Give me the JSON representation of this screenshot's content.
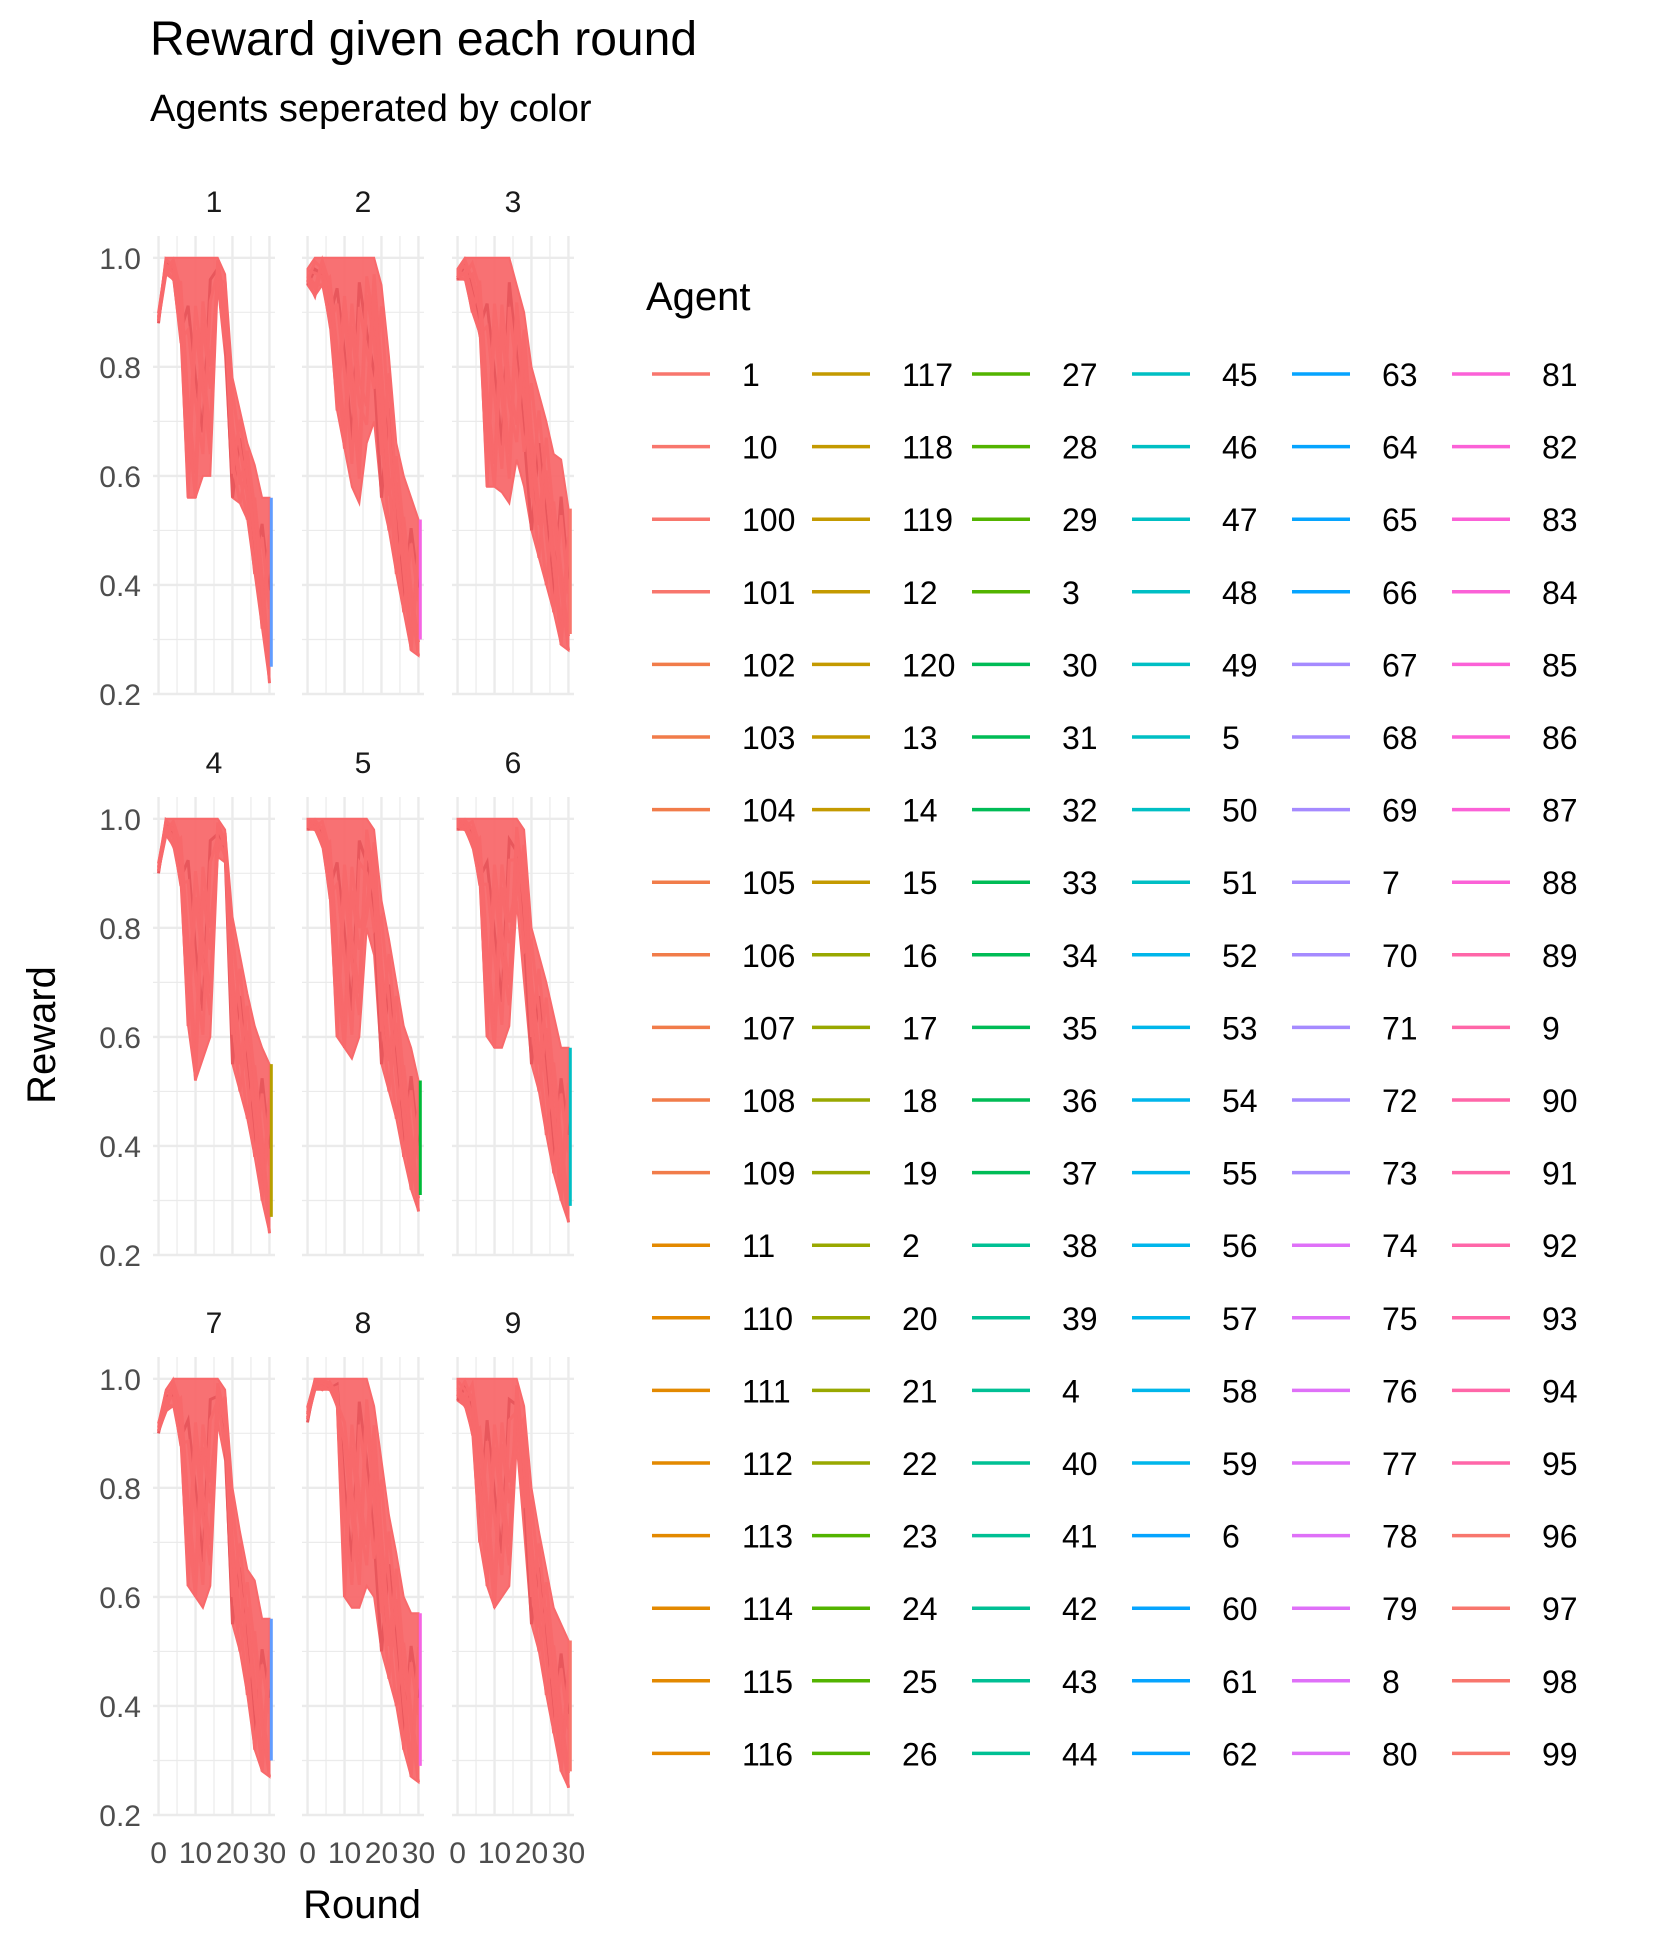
{
  "chart_data": {
    "type": "line",
    "title": "Reward given each round",
    "subtitle": "Agents seperated by color",
    "xlabel": "Round",
    "ylabel": "Reward",
    "xlim": [
      0,
      30
    ],
    "ylim": [
      0.2,
      1.0
    ],
    "x_ticks": [
      "0",
      "10",
      "20",
      "30",
      "0",
      "10",
      "20",
      "30",
      "0",
      "10",
      "20",
      "30"
    ],
    "x_ticks_visible_text": [
      "0 1020300",
      "1020300",
      "102030"
    ],
    "y_ticks": [
      "0.2",
      "0.4",
      "0.6",
      "0.8",
      "1.0"
    ],
    "grid": true,
    "facets": [
      "1",
      "2",
      "3",
      "4",
      "5",
      "6",
      "7",
      "8",
      "9"
    ],
    "legend": {
      "title": "Agent",
      "placement": "right",
      "entries": [
        "1",
        "10",
        "100",
        "101",
        "102",
        "103",
        "104",
        "105",
        "106",
        "107",
        "108",
        "109",
        "11",
        "110",
        "111",
        "112",
        "113",
        "114",
        "115",
        "116",
        "117",
        "118",
        "119",
        "12",
        "120",
        "13",
        "14",
        "15",
        "16",
        "17",
        "18",
        "19",
        "2",
        "20",
        "21",
        "22",
        "23",
        "24",
        "25",
        "26",
        "27",
        "28",
        "29",
        "3",
        "30",
        "31",
        "32",
        "33",
        "34",
        "35",
        "36",
        "37",
        "38",
        "39",
        "4",
        "40",
        "41",
        "42",
        "43",
        "44",
        "45",
        "46",
        "47",
        "48",
        "49",
        "5",
        "50",
        "51",
        "52",
        "53",
        "54",
        "55",
        "56",
        "57",
        "58",
        "59",
        "6",
        "60",
        "61",
        "62",
        "63",
        "64",
        "65",
        "66",
        "67",
        "68",
        "69",
        "7",
        "70",
        "71",
        "72",
        "73",
        "74",
        "75",
        "76",
        "77",
        "78",
        "79",
        "8",
        "80",
        "81",
        "82",
        "83",
        "84",
        "85",
        "86",
        "87",
        "88",
        "89",
        "9",
        "90",
        "91",
        "92",
        "93",
        "94",
        "95",
        "96",
        "97",
        "98",
        "99"
      ]
    },
    "series_summary": [
      {
        "facet": "1",
        "x": [
          0,
          2,
          4,
          6,
          8,
          10,
          12,
          14,
          16,
          18,
          20,
          22,
          24,
          26,
          28,
          30
        ],
        "upper": [
          0.9,
          1.0,
          1.0,
          1.0,
          1.0,
          1.0,
          1.0,
          1.0,
          1.0,
          0.97,
          0.78,
          0.72,
          0.66,
          0.62,
          0.56,
          0.56
        ],
        "lower": [
          0.88,
          0.97,
          0.96,
          0.85,
          0.56,
          0.56,
          0.6,
          0.6,
          0.95,
          0.82,
          0.56,
          0.55,
          0.52,
          0.42,
          0.32,
          0.22
        ]
      },
      {
        "facet": "2",
        "x": [
          0,
          2,
          4,
          6,
          8,
          10,
          12,
          14,
          16,
          18,
          20,
          22,
          24,
          26,
          28,
          30
        ],
        "upper": [
          0.98,
          1.0,
          1.0,
          1.0,
          1.0,
          1.0,
          1.0,
          1.0,
          1.0,
          1.0,
          0.95,
          0.82,
          0.66,
          0.6,
          0.56,
          0.52
        ],
        "lower": [
          0.95,
          0.93,
          0.95,
          0.88,
          0.72,
          0.65,
          0.58,
          0.55,
          0.66,
          0.7,
          0.56,
          0.5,
          0.42,
          0.35,
          0.28,
          0.27
        ]
      },
      {
        "facet": "3",
        "x": [
          0,
          2,
          4,
          6,
          8,
          10,
          12,
          14,
          16,
          18,
          20,
          22,
          24,
          26,
          28,
          30
        ],
        "upper": [
          0.98,
          1.0,
          1.0,
          1.0,
          1.0,
          1.0,
          1.0,
          1.0,
          0.95,
          0.9,
          0.8,
          0.75,
          0.7,
          0.64,
          0.63,
          0.54
        ],
        "lower": [
          0.96,
          0.96,
          0.9,
          0.86,
          0.58,
          0.58,
          0.57,
          0.55,
          0.63,
          0.58,
          0.5,
          0.45,
          0.4,
          0.35,
          0.29,
          0.28
        ]
      },
      {
        "facet": "4",
        "x": [
          0,
          2,
          4,
          6,
          8,
          10,
          12,
          14,
          16,
          18,
          20,
          22,
          24,
          26,
          28,
          30
        ],
        "upper": [
          0.92,
          1.0,
          1.0,
          1.0,
          1.0,
          1.0,
          1.0,
          1.0,
          1.0,
          0.98,
          0.82,
          0.75,
          0.68,
          0.62,
          0.58,
          0.55
        ],
        "lower": [
          0.9,
          0.97,
          0.95,
          0.88,
          0.62,
          0.52,
          0.56,
          0.6,
          0.93,
          0.92,
          0.55,
          0.5,
          0.45,
          0.38,
          0.3,
          0.24
        ]
      },
      {
        "facet": "5",
        "x": [
          0,
          2,
          4,
          6,
          8,
          10,
          12,
          14,
          16,
          18,
          20,
          22,
          24,
          26,
          28,
          30
        ],
        "upper": [
          1.0,
          1.0,
          1.0,
          1.0,
          1.0,
          1.0,
          1.0,
          1.0,
          1.0,
          0.98,
          0.85,
          0.78,
          0.7,
          0.62,
          0.58,
          0.52
        ],
        "lower": [
          0.98,
          0.98,
          0.95,
          0.86,
          0.6,
          0.58,
          0.56,
          0.6,
          0.8,
          0.75,
          0.55,
          0.5,
          0.45,
          0.38,
          0.32,
          0.28
        ]
      },
      {
        "facet": "6",
        "x": [
          0,
          2,
          4,
          6,
          8,
          10,
          12,
          14,
          16,
          18,
          20,
          22,
          24,
          26,
          28,
          30
        ],
        "upper": [
          1.0,
          1.0,
          1.0,
          1.0,
          1.0,
          1.0,
          1.0,
          1.0,
          1.0,
          0.98,
          0.8,
          0.75,
          0.7,
          0.64,
          0.58,
          0.58
        ],
        "lower": [
          0.98,
          0.98,
          0.95,
          0.88,
          0.6,
          0.58,
          0.58,
          0.62,
          0.85,
          0.7,
          0.55,
          0.5,
          0.42,
          0.35,
          0.3,
          0.26
        ]
      },
      {
        "facet": "7",
        "x": [
          0,
          2,
          4,
          6,
          8,
          10,
          12,
          14,
          16,
          18,
          20,
          22,
          24,
          26,
          28,
          30
        ],
        "upper": [
          0.92,
          0.98,
          1.0,
          1.0,
          1.0,
          1.0,
          1.0,
          1.0,
          1.0,
          0.98,
          0.8,
          0.72,
          0.65,
          0.63,
          0.56,
          0.56
        ],
        "lower": [
          0.9,
          0.94,
          0.95,
          0.88,
          0.62,
          0.6,
          0.58,
          0.62,
          0.92,
          0.85,
          0.55,
          0.5,
          0.42,
          0.32,
          0.28,
          0.27
        ]
      },
      {
        "facet": "8",
        "x": [
          0,
          2,
          4,
          6,
          8,
          10,
          12,
          14,
          16,
          18,
          20,
          22,
          24,
          26,
          28,
          30
        ],
        "upper": [
          0.95,
          1.0,
          1.0,
          1.0,
          1.0,
          1.0,
          1.0,
          1.0,
          1.0,
          0.95,
          0.85,
          0.75,
          0.68,
          0.6,
          0.57,
          0.57
        ],
        "lower": [
          0.92,
          0.98,
          0.98,
          0.98,
          0.95,
          0.6,
          0.58,
          0.58,
          0.62,
          0.6,
          0.5,
          0.45,
          0.4,
          0.32,
          0.27,
          0.26
        ]
      },
      {
        "facet": "9",
        "x": [
          0,
          2,
          4,
          6,
          8,
          10,
          12,
          14,
          16,
          18,
          20,
          22,
          24,
          26,
          28,
          30
        ],
        "upper": [
          1.0,
          1.0,
          1.0,
          1.0,
          1.0,
          1.0,
          1.0,
          1.0,
          1.0,
          0.95,
          0.8,
          0.72,
          0.65,
          0.58,
          0.55,
          0.52
        ],
        "lower": [
          0.96,
          0.95,
          0.9,
          0.7,
          0.62,
          0.58,
          0.6,
          0.62,
          0.88,
          0.72,
          0.55,
          0.5,
          0.42,
          0.35,
          0.28,
          0.25
        ]
      }
    ],
    "band_color": "#f8696b",
    "accent_colors": [
      "#f8766d",
      "#b79f00",
      "#00ba38",
      "#00bfc4",
      "#619cff",
      "#f564e3"
    ]
  }
}
